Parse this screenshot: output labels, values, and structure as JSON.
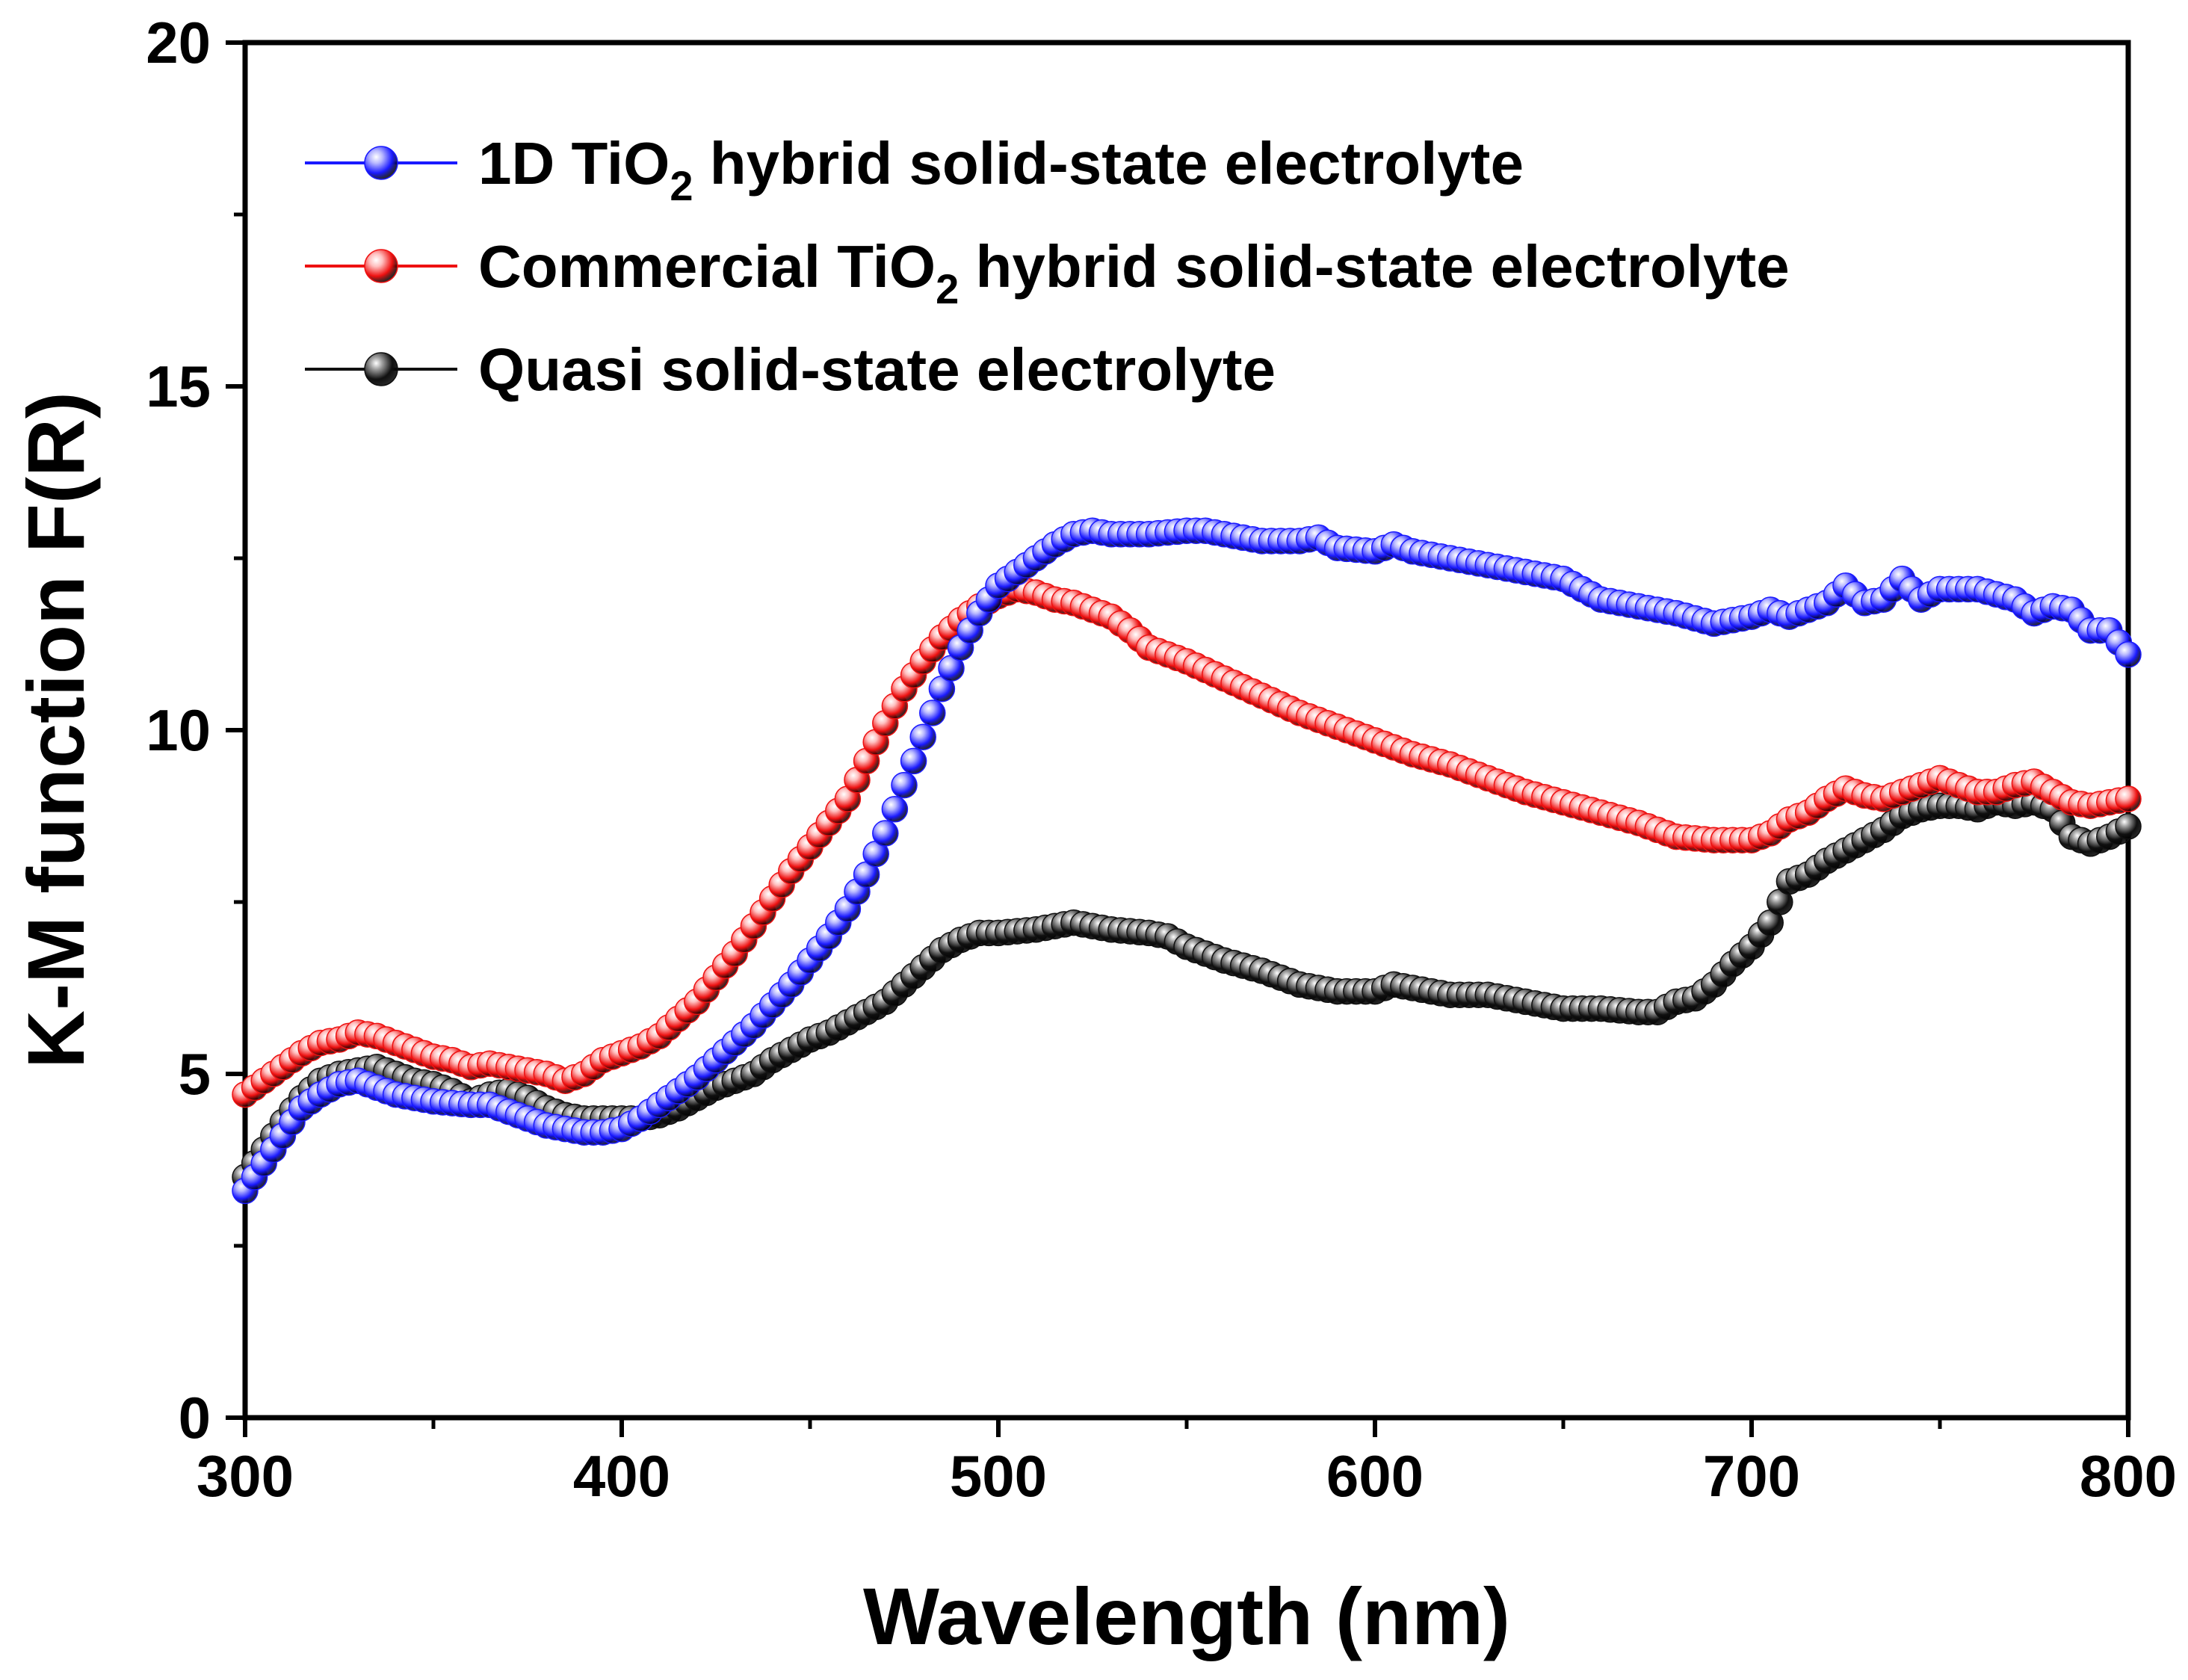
{
  "chart_data": {
    "type": "scatter",
    "title": "",
    "xlabel": "Wavelength (nm)",
    "ylabel": "K-M function F(R)",
    "xlim": [
      300,
      800
    ],
    "ylim": [
      0,
      20
    ],
    "xticks": [
      300,
      400,
      500,
      600,
      700,
      800
    ],
    "yticks": [
      0,
      5,
      10,
      15,
      20
    ],
    "grid": false,
    "legend_position": "top-left",
    "series": [
      {
        "name": "1D TiO2 hybrid solid-state electrolyte",
        "legend_parts": [
          "1D TiO",
          "2",
          " hybrid solid-state electrolyte"
        ],
        "color": "#1a1aff",
        "highlight": "#b8b8ff",
        "knots": [
          [
            300,
            3.3
          ],
          [
            305,
            3.7
          ],
          [
            310,
            4.1
          ],
          [
            315,
            4.5
          ],
          [
            320,
            4.7
          ],
          [
            325,
            4.85
          ],
          [
            330,
            4.9
          ],
          [
            335,
            4.8
          ],
          [
            340,
            4.7
          ],
          [
            345,
            4.65
          ],
          [
            350,
            4.6
          ],
          [
            360,
            4.55
          ],
          [
            365,
            4.55
          ],
          [
            370,
            4.45
          ],
          [
            375,
            4.35
          ],
          [
            380,
            4.25
          ],
          [
            385,
            4.2
          ],
          [
            390,
            4.15
          ],
          [
            395,
            4.15
          ],
          [
            400,
            4.2
          ],
          [
            405,
            4.35
          ],
          [
            410,
            4.55
          ],
          [
            415,
            4.75
          ],
          [
            420,
            4.95
          ],
          [
            425,
            5.2
          ],
          [
            430,
            5.45
          ],
          [
            435,
            5.7
          ],
          [
            440,
            6.0
          ],
          [
            445,
            6.3
          ],
          [
            450,
            6.65
          ],
          [
            455,
            7.0
          ],
          [
            460,
            7.4
          ],
          [
            465,
            7.9
          ],
          [
            470,
            8.5
          ],
          [
            475,
            9.2
          ],
          [
            480,
            9.9
          ],
          [
            485,
            10.6
          ],
          [
            490,
            11.2
          ],
          [
            495,
            11.7
          ],
          [
            500,
            12.1
          ],
          [
            505,
            12.3
          ],
          [
            510,
            12.5
          ],
          [
            515,
            12.7
          ],
          [
            520,
            12.85
          ],
          [
            525,
            12.9
          ],
          [
            530,
            12.85
          ],
          [
            540,
            12.85
          ],
          [
            550,
            12.9
          ],
          [
            555,
            12.9
          ],
          [
            560,
            12.85
          ],
          [
            570,
            12.75
          ],
          [
            580,
            12.75
          ],
          [
            585,
            12.8
          ],
          [
            590,
            12.65
          ],
          [
            600,
            12.6
          ],
          [
            605,
            12.7
          ],
          [
            610,
            12.6
          ],
          [
            620,
            12.5
          ],
          [
            630,
            12.4
          ],
          [
            640,
            12.3
          ],
          [
            650,
            12.2
          ],
          [
            655,
            12.05
          ],
          [
            660,
            11.9
          ],
          [
            670,
            11.8
          ],
          [
            680,
            11.7
          ],
          [
            690,
            11.55
          ],
          [
            695,
            11.6
          ],
          [
            700,
            11.65
          ],
          [
            705,
            11.75
          ],
          [
            710,
            11.65
          ],
          [
            720,
            11.85
          ],
          [
            725,
            12.1
          ],
          [
            730,
            11.85
          ],
          [
            735,
            11.9
          ],
          [
            740,
            12.2
          ],
          [
            745,
            11.9
          ],
          [
            750,
            12.05
          ],
          [
            760,
            12.05
          ],
          [
            770,
            11.9
          ],
          [
            775,
            11.7
          ],
          [
            780,
            11.8
          ],
          [
            785,
            11.75
          ],
          [
            790,
            11.45
          ],
          [
            795,
            11.45
          ],
          [
            800,
            11.1
          ]
        ]
      },
      {
        "name": "Commercial TiO2 hybrid solid-state electrolyte",
        "legend_parts": [
          "Commercial TiO",
          "2",
          " hybrid solid-state electrolyte"
        ],
        "color": "#ee1111",
        "highlight": "#ffc0c0",
        "knots": [
          [
            300,
            4.7
          ],
          [
            305,
            4.9
          ],
          [
            310,
            5.1
          ],
          [
            315,
            5.3
          ],
          [
            320,
            5.45
          ],
          [
            325,
            5.5
          ],
          [
            330,
            5.6
          ],
          [
            335,
            5.55
          ],
          [
            340,
            5.45
          ],
          [
            345,
            5.35
          ],
          [
            350,
            5.25
          ],
          [
            355,
            5.2
          ],
          [
            360,
            5.1
          ],
          [
            365,
            5.15
          ],
          [
            370,
            5.1
          ],
          [
            375,
            5.05
          ],
          [
            380,
            5.0
          ],
          [
            385,
            4.9
          ],
          [
            390,
            5.0
          ],
          [
            395,
            5.2
          ],
          [
            400,
            5.3
          ],
          [
            405,
            5.4
          ],
          [
            410,
            5.55
          ],
          [
            415,
            5.8
          ],
          [
            420,
            6.05
          ],
          [
            425,
            6.4
          ],
          [
            430,
            6.75
          ],
          [
            435,
            7.15
          ],
          [
            440,
            7.55
          ],
          [
            445,
            7.95
          ],
          [
            450,
            8.3
          ],
          [
            455,
            8.65
          ],
          [
            460,
            9.0
          ],
          [
            465,
            9.55
          ],
          [
            470,
            10.1
          ],
          [
            475,
            10.6
          ],
          [
            480,
            11.0
          ],
          [
            485,
            11.35
          ],
          [
            490,
            11.6
          ],
          [
            495,
            11.8
          ],
          [
            500,
            11.95
          ],
          [
            505,
            12.05
          ],
          [
            510,
            12.0
          ],
          [
            515,
            11.9
          ],
          [
            520,
            11.85
          ],
          [
            525,
            11.75
          ],
          [
            530,
            11.65
          ],
          [
            535,
            11.45
          ],
          [
            540,
            11.2
          ],
          [
            550,
            11.0
          ],
          [
            560,
            10.75
          ],
          [
            570,
            10.5
          ],
          [
            580,
            10.25
          ],
          [
            590,
            10.05
          ],
          [
            600,
            9.85
          ],
          [
            610,
            9.65
          ],
          [
            620,
            9.5
          ],
          [
            630,
            9.3
          ],
          [
            640,
            9.1
          ],
          [
            650,
            8.95
          ],
          [
            660,
            8.8
          ],
          [
            670,
            8.65
          ],
          [
            680,
            8.45
          ],
          [
            690,
            8.4
          ],
          [
            700,
            8.4
          ],
          [
            705,
            8.5
          ],
          [
            710,
            8.7
          ],
          [
            715,
            8.8
          ],
          [
            720,
            9.0
          ],
          [
            725,
            9.15
          ],
          [
            730,
            9.05
          ],
          [
            735,
            9.0
          ],
          [
            740,
            9.1
          ],
          [
            745,
            9.2
          ],
          [
            750,
            9.3
          ],
          [
            755,
            9.2
          ],
          [
            760,
            9.1
          ],
          [
            765,
            9.1
          ],
          [
            770,
            9.2
          ],
          [
            775,
            9.25
          ],
          [
            780,
            9.1
          ],
          [
            785,
            8.95
          ],
          [
            790,
            8.9
          ],
          [
            795,
            8.95
          ],
          [
            800,
            9.0
          ]
        ]
      },
      {
        "name": "Quasi solid-state electrolyte",
        "legend_parts": [
          "Quasi solid-state electrolyte"
        ],
        "color": "#101010",
        "highlight": "#9a9a9a",
        "knots": [
          [
            300,
            3.5
          ],
          [
            305,
            3.9
          ],
          [
            310,
            4.3
          ],
          [
            315,
            4.65
          ],
          [
            320,
            4.9
          ],
          [
            325,
            5.0
          ],
          [
            330,
            5.05
          ],
          [
            335,
            5.1
          ],
          [
            340,
            5.0
          ],
          [
            345,
            4.9
          ],
          [
            350,
            4.85
          ],
          [
            355,
            4.75
          ],
          [
            360,
            4.6
          ],
          [
            365,
            4.7
          ],
          [
            370,
            4.75
          ],
          [
            375,
            4.65
          ],
          [
            380,
            4.5
          ],
          [
            385,
            4.4
          ],
          [
            390,
            4.35
          ],
          [
            395,
            4.35
          ],
          [
            400,
            4.35
          ],
          [
            405,
            4.35
          ],
          [
            410,
            4.4
          ],
          [
            415,
            4.5
          ],
          [
            420,
            4.65
          ],
          [
            425,
            4.8
          ],
          [
            430,
            4.9
          ],
          [
            435,
            5.0
          ],
          [
            440,
            5.2
          ],
          [
            445,
            5.35
          ],
          [
            450,
            5.5
          ],
          [
            455,
            5.6
          ],
          [
            460,
            5.75
          ],
          [
            465,
            5.9
          ],
          [
            470,
            6.05
          ],
          [
            475,
            6.3
          ],
          [
            480,
            6.55
          ],
          [
            485,
            6.8
          ],
          [
            490,
            6.95
          ],
          [
            495,
            7.05
          ],
          [
            500,
            7.05
          ],
          [
            510,
            7.1
          ],
          [
            520,
            7.2
          ],
          [
            525,
            7.15
          ],
          [
            530,
            7.1
          ],
          [
            540,
            7.05
          ],
          [
            545,
            7.0
          ],
          [
            550,
            6.85
          ],
          [
            560,
            6.65
          ],
          [
            570,
            6.5
          ],
          [
            580,
            6.3
          ],
          [
            590,
            6.2
          ],
          [
            600,
            6.2
          ],
          [
            605,
            6.3
          ],
          [
            610,
            6.25
          ],
          [
            620,
            6.15
          ],
          [
            630,
            6.15
          ],
          [
            640,
            6.05
          ],
          [
            650,
            5.95
          ],
          [
            660,
            5.95
          ],
          [
            670,
            5.9
          ],
          [
            675,
            5.9
          ],
          [
            680,
            6.05
          ],
          [
            685,
            6.1
          ],
          [
            690,
            6.3
          ],
          [
            695,
            6.6
          ],
          [
            700,
            6.85
          ],
          [
            705,
            7.2
          ],
          [
            710,
            7.8
          ],
          [
            715,
            7.9
          ],
          [
            720,
            8.1
          ],
          [
            725,
            8.25
          ],
          [
            730,
            8.4
          ],
          [
            735,
            8.55
          ],
          [
            740,
            8.75
          ],
          [
            745,
            8.85
          ],
          [
            750,
            8.9
          ],
          [
            755,
            8.9
          ],
          [
            760,
            8.85
          ],
          [
            765,
            8.95
          ],
          [
            770,
            8.9
          ],
          [
            775,
            8.95
          ],
          [
            780,
            8.85
          ],
          [
            785,
            8.45
          ],
          [
            790,
            8.35
          ],
          [
            795,
            8.45
          ],
          [
            800,
            8.6
          ]
        ]
      }
    ]
  }
}
